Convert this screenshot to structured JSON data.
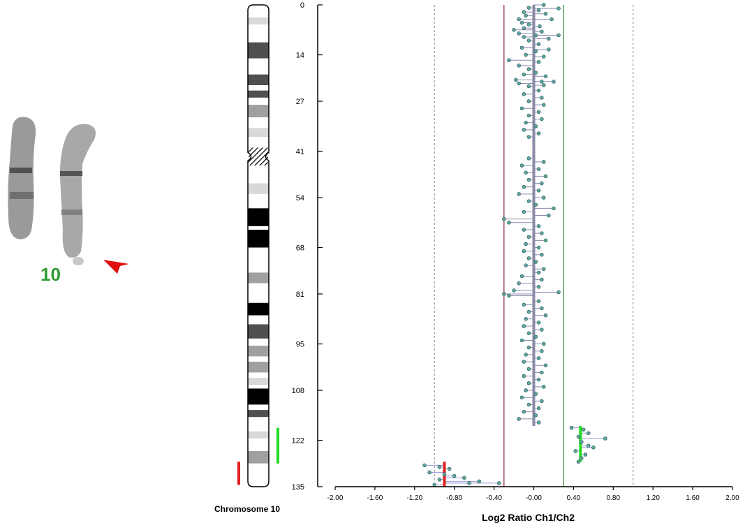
{
  "karyotype": {
    "number_label": "10",
    "number_color": "#2e9a2e",
    "arrow_color": "#e01010"
  },
  "ideogram": {
    "caption": "Chromosome 10",
    "gain_bar_color": "#22dd22",
    "loss_bar_color": "#e02020",
    "bands": [
      {
        "start": 0,
        "end": 3.5,
        "stain": "gneg"
      },
      {
        "start": 3.5,
        "end": 5.5,
        "stain": "gpos25"
      },
      {
        "start": 5.5,
        "end": 10.5,
        "stain": "gneg"
      },
      {
        "start": 10.5,
        "end": 15,
        "stain": "gpos75"
      },
      {
        "start": 15,
        "end": 19.5,
        "stain": "gneg"
      },
      {
        "start": 19.5,
        "end": 22.5,
        "stain": "gpos75"
      },
      {
        "start": 22.5,
        "end": 24,
        "stain": "gneg"
      },
      {
        "start": 24,
        "end": 26,
        "stain": "gpos75"
      },
      {
        "start": 26,
        "end": 28,
        "stain": "gneg"
      },
      {
        "start": 28,
        "end": 31.5,
        "stain": "gpos50"
      },
      {
        "start": 31.5,
        "end": 34.5,
        "stain": "gneg"
      },
      {
        "start": 34.5,
        "end": 37,
        "stain": "gpos25"
      },
      {
        "start": 37,
        "end": 40,
        "stain": "gneg"
      },
      {
        "start": 40,
        "end": 42.5,
        "stain": "stalk"
      },
      {
        "start": 42.5,
        "end": 45,
        "stain": "stalk"
      },
      {
        "start": 45,
        "end": 50,
        "stain": "gneg"
      },
      {
        "start": 50,
        "end": 53,
        "stain": "gpos25"
      },
      {
        "start": 53,
        "end": 57,
        "stain": "gneg"
      },
      {
        "start": 57,
        "end": 62,
        "stain": "gpos100"
      },
      {
        "start": 62,
        "end": 63,
        "stain": "gneg"
      },
      {
        "start": 63,
        "end": 68,
        "stain": "gpos100"
      },
      {
        "start": 68,
        "end": 75,
        "stain": "gneg"
      },
      {
        "start": 75,
        "end": 78,
        "stain": "gpos50"
      },
      {
        "start": 78,
        "end": 83.5,
        "stain": "gneg"
      },
      {
        "start": 83.5,
        "end": 87,
        "stain": "gpos100"
      },
      {
        "start": 87,
        "end": 89.5,
        "stain": "gneg"
      },
      {
        "start": 89.5,
        "end": 93.5,
        "stain": "gpos75"
      },
      {
        "start": 93.5,
        "end": 95.5,
        "stain": "gneg"
      },
      {
        "start": 95.5,
        "end": 98.5,
        "stain": "gpos50"
      },
      {
        "start": 98.5,
        "end": 100,
        "stain": "gneg"
      },
      {
        "start": 100,
        "end": 103,
        "stain": "gpos50"
      },
      {
        "start": 103,
        "end": 104.5,
        "stain": "gneg"
      },
      {
        "start": 104.5,
        "end": 106.5,
        "stain": "gpos25"
      },
      {
        "start": 106.5,
        "end": 107.5,
        "stain": "gneg"
      },
      {
        "start": 107.5,
        "end": 112,
        "stain": "gpos100"
      },
      {
        "start": 112,
        "end": 113.5,
        "stain": "gneg"
      },
      {
        "start": 113.5,
        "end": 115.5,
        "stain": "gpos75"
      },
      {
        "start": 115.5,
        "end": 119.5,
        "stain": "gneg"
      },
      {
        "start": 119.5,
        "end": 121.5,
        "stain": "gpos25"
      },
      {
        "start": 121.5,
        "end": 125,
        "stain": "gneg"
      },
      {
        "start": 125,
        "end": 128.5,
        "stain": "gpos50"
      },
      {
        "start": 128.5,
        "end": 135,
        "stain": "gneg"
      }
    ],
    "gain_region": [
      118.5,
      128.5
    ],
    "loss_region": [
      128,
      134.5
    ]
  },
  "chart_data": {
    "type": "scatter",
    "xlabel": "Log2 Ratio Ch1/Ch2",
    "xlim": [
      -2.0,
      2.0
    ],
    "ylim": [
      0,
      135
    ],
    "x_ticks": [
      "-2.00",
      "-1.60",
      "-1.20",
      "-0.80",
      "-0.40",
      "-0.00",
      "0.40",
      "0.80",
      "1.20",
      "1.60",
      "2.00"
    ],
    "y_ticks": [
      "0",
      "14",
      "27",
      "41",
      "54",
      "68",
      "81",
      "95",
      "108",
      "122",
      "135"
    ],
    "reference_lines": [
      {
        "x": -1.0,
        "style": "dotted",
        "color": "#999999"
      },
      {
        "x": 1.0,
        "style": "dotted",
        "color": "#999999"
      },
      {
        "x": -0.3,
        "style": "solid",
        "color": "#8b2040"
      },
      {
        "x": 0.3,
        "style": "solid",
        "color": "#2a8a2a"
      }
    ],
    "segments": [
      {
        "y_start": 0,
        "y_end": 118,
        "mean": 0.0,
        "color": "#8a8aa8"
      },
      {
        "y_start": 118,
        "y_end": 128,
        "mean": 0.47,
        "color": "#22dd22"
      },
      {
        "y_start": 128,
        "y_end": 135,
        "mean": -0.9,
        "color": "#e02020"
      }
    ],
    "points": [
      [
        0.1,
        0
      ],
      [
        -0.05,
        0.8
      ],
      [
        0.05,
        1.5
      ],
      [
        0.25,
        1
      ],
      [
        -0.1,
        2
      ],
      [
        0.12,
        2.5
      ],
      [
        -0.08,
        3
      ],
      [
        -0.15,
        4
      ],
      [
        0.18,
        4
      ],
      [
        -0.12,
        5
      ],
      [
        -0.05,
        5.5
      ],
      [
        0.06,
        6
      ],
      [
        -0.1,
        6.5
      ],
      [
        -0.2,
        7
      ],
      [
        0.08,
        7.5
      ],
      [
        -0.15,
        8
      ],
      [
        0.02,
        8.5
      ],
      [
        -0.1,
        9
      ],
      [
        0.15,
        9.5
      ],
      [
        0.25,
        8.5
      ],
      [
        -0.05,
        10
      ],
      [
        0.05,
        11
      ],
      [
        -0.12,
        12
      ],
      [
        0.15,
        12.5
      ],
      [
        0.02,
        13
      ],
      [
        -0.08,
        14
      ],
      [
        0.1,
        14.5
      ],
      [
        -0.25,
        15.5
      ],
      [
        0.05,
        16
      ],
      [
        -0.15,
        17
      ],
      [
        -0.05,
        18
      ],
      [
        0.02,
        19
      ],
      [
        -0.1,
        19.5
      ],
      [
        0.12,
        20
      ],
      [
        -0.18,
        21
      ],
      [
        0.08,
        21.5
      ],
      [
        -0.15,
        22
      ],
      [
        0.1,
        22.5
      ],
      [
        -0.05,
        22.8
      ],
      [
        0.2,
        21.5
      ],
      [
        0.05,
        24
      ],
      [
        -0.1,
        25
      ],
      [
        0.08,
        26
      ],
      [
        -0.05,
        27
      ],
      [
        0.1,
        28
      ],
      [
        -0.12,
        29
      ],
      [
        0.05,
        30
      ],
      [
        -0.05,
        31
      ],
      [
        0.08,
        32
      ],
      [
        -0.08,
        33
      ],
      [
        0.02,
        34
      ],
      [
        -0.1,
        35
      ],
      [
        0.05,
        36
      ],
      [
        -0.05,
        37
      ],
      [
        -0.05,
        43
      ],
      [
        0.1,
        44
      ],
      [
        -0.12,
        45
      ],
      [
        0.05,
        46
      ],
      [
        -0.08,
        47
      ],
      [
        0.12,
        48
      ],
      [
        -0.05,
        49
      ],
      [
        0.08,
        50
      ],
      [
        -0.1,
        51
      ],
      [
        0.05,
        52
      ],
      [
        -0.15,
        53
      ],
      [
        0.1,
        54
      ],
      [
        -0.05,
        55
      ],
      [
        0.02,
        56
      ],
      [
        0.2,
        57
      ],
      [
        -0.1,
        58
      ],
      [
        0.15,
        59
      ],
      [
        -0.3,
        60
      ],
      [
        -0.25,
        61
      ],
      [
        0.05,
        62
      ],
      [
        -0.1,
        63
      ],
      [
        0.08,
        64
      ],
      [
        -0.05,
        65
      ],
      [
        0.12,
        66
      ],
      [
        -0.08,
        67
      ],
      [
        0.05,
        68
      ],
      [
        -0.1,
        69
      ],
      [
        0.08,
        70
      ],
      [
        -0.05,
        71
      ],
      [
        0.02,
        72
      ],
      [
        -0.08,
        73
      ],
      [
        0.1,
        74
      ],
      [
        0.05,
        75
      ],
      [
        -0.12,
        76
      ],
      [
        0.08,
        77
      ],
      [
        -0.15,
        78
      ],
      [
        0.05,
        79
      ],
      [
        -0.2,
        80
      ],
      [
        0.25,
        80.5
      ],
      [
        -0.3,
        81
      ],
      [
        -0.25,
        81.5
      ],
      [
        0.05,
        83
      ],
      [
        -0.1,
        84
      ],
      [
        0.08,
        85
      ],
      [
        -0.05,
        86
      ],
      [
        0.12,
        87
      ],
      [
        -0.08,
        88
      ],
      [
        0.05,
        89
      ],
      [
        -0.1,
        90
      ],
      [
        0.08,
        91
      ],
      [
        -0.05,
        92
      ],
      [
        0.02,
        93
      ],
      [
        -0.12,
        94
      ],
      [
        0.1,
        95
      ],
      [
        -0.05,
        96
      ],
      [
        0.08,
        97
      ],
      [
        -0.08,
        98
      ],
      [
        0.05,
        99
      ],
      [
        -0.1,
        100
      ],
      [
        0.12,
        101
      ],
      [
        -0.05,
        102
      ],
      [
        0.08,
        103
      ],
      [
        -0.1,
        104
      ],
      [
        0.05,
        105
      ],
      [
        -0.05,
        106
      ],
      [
        0.1,
        107
      ],
      [
        -0.08,
        108
      ],
      [
        0.02,
        109
      ],
      [
        -0.12,
        110
      ],
      [
        0.08,
        111
      ],
      [
        -0.05,
        112
      ],
      [
        0.05,
        113
      ],
      [
        -0.1,
        114
      ],
      [
        0.02,
        115
      ],
      [
        -0.15,
        116
      ],
      [
        0.05,
        117
      ],
      [
        0.38,
        118.5
      ],
      [
        0.5,
        119
      ],
      [
        0.55,
        120
      ],
      [
        0.45,
        121
      ],
      [
        0.72,
        121.5
      ],
      [
        0.48,
        122.5
      ],
      [
        0.55,
        123.5
      ],
      [
        0.6,
        124
      ],
      [
        0.42,
        125
      ],
      [
        0.52,
        126
      ],
      [
        0.48,
        127
      ],
      [
        0.45,
        128
      ],
      [
        -1.1,
        129
      ],
      [
        -0.95,
        129.5
      ],
      [
        -0.85,
        130
      ],
      [
        -1.05,
        131
      ],
      [
        -0.9,
        131.5
      ],
      [
        -0.8,
        132
      ],
      [
        -0.7,
        132.5
      ],
      [
        -0.95,
        133
      ],
      [
        -0.55,
        133.5
      ],
      [
        -0.65,
        134
      ],
      [
        -0.35,
        134
      ],
      [
        -1.0,
        134.5
      ]
    ]
  }
}
